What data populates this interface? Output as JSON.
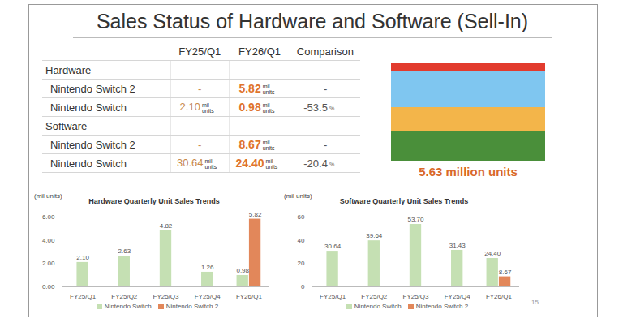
{
  "title": "Sales Status of Hardware and Software (Sell-In)",
  "table": {
    "columns": [
      "FY25/Q1",
      "FY26/Q1",
      "Comparison"
    ],
    "sections": [
      {
        "title": "Hardware",
        "rows": [
          {
            "label": "Nintendo Switch 2",
            "cells": [
              {
                "value": "-"
              },
              {
                "value": "5.82",
                "unit": "mil units"
              },
              {
                "value": "-"
              }
            ]
          },
          {
            "label": "Nintendo Switch",
            "cells": [
              {
                "value": "2.10",
                "unit": "mil units"
              },
              {
                "value": "0.98",
                "unit": "mil units"
              },
              {
                "value": "-53.5",
                "unit": "%"
              }
            ]
          }
        ]
      },
      {
        "title": "Software",
        "rows": [
          {
            "label": "Nintendo Switch 2",
            "cells": [
              {
                "value": "-"
              },
              {
                "value": "8.67",
                "unit": "mil units"
              },
              {
                "value": "-"
              }
            ]
          },
          {
            "label": "Nintendo Switch",
            "cells": [
              {
                "value": "30.64",
                "unit": "mil units"
              },
              {
                "value": "24.40",
                "unit": "mil units"
              },
              {
                "value": "-20.4",
                "unit": "%"
              }
            ]
          }
        ]
      }
    ]
  },
  "image_caption": "5.63 million units",
  "page_number": "15",
  "chart_data": [
    {
      "type": "bar",
      "title": "Hardware Quarterly Unit Sales Trends",
      "y_label": "(mil units)",
      "categories": [
        "FY25/Q1",
        "FY25/Q2",
        "FY25/Q3",
        "FY25/Q4",
        "FY26/Q1"
      ],
      "series": [
        {
          "name": "Nintendo Switch",
          "color": "#c5e0b3",
          "values": [
            2.1,
            2.63,
            4.82,
            1.26,
            0.98
          ],
          "value_labels": [
            "2.10",
            "2.63",
            "4.82",
            "1.26",
            "0.98"
          ]
        },
        {
          "name": "Nintendo Switch 2",
          "color": "#e2875a",
          "values": [
            null,
            null,
            null,
            null,
            5.82
          ],
          "value_labels": [
            null,
            null,
            null,
            null,
            "5.82"
          ]
        }
      ],
      "ylim": [
        0,
        6
      ],
      "yticks": [
        {
          "value": 0,
          "label": "0.00"
        },
        {
          "value": 2,
          "label": "2.00"
        },
        {
          "value": 4,
          "label": "4.00"
        },
        {
          "value": 6,
          "label": "6.00"
        }
      ],
      "grid": false,
      "data_labels": true,
      "legend": "bottom"
    },
    {
      "type": "bar",
      "title": "Software Quarterly Unit Sales Trends",
      "y_label": "(mil units)",
      "categories": [
        "FY25/Q1",
        "FY25/Q2",
        "FY25/Q3",
        "FY25/Q4",
        "FY26/Q1"
      ],
      "series": [
        {
          "name": "Nintendo Switch",
          "color": "#c5e0b3",
          "values": [
            30.64,
            39.64,
            53.7,
            31.43,
            24.4
          ],
          "value_labels": [
            "30.64",
            "39.64",
            "53.70",
            "31.43",
            "24.40"
          ]
        },
        {
          "name": "Nintendo Switch 2",
          "color": "#e2875a",
          "values": [
            null,
            null,
            null,
            null,
            8.67
          ],
          "value_labels": [
            null,
            null,
            null,
            null,
            "8.67"
          ]
        }
      ],
      "ylim": [
        0,
        60
      ],
      "yticks": [
        0,
        20,
        40,
        60
      ],
      "grid": false,
      "data_labels": true,
      "legend": "bottom"
    }
  ]
}
